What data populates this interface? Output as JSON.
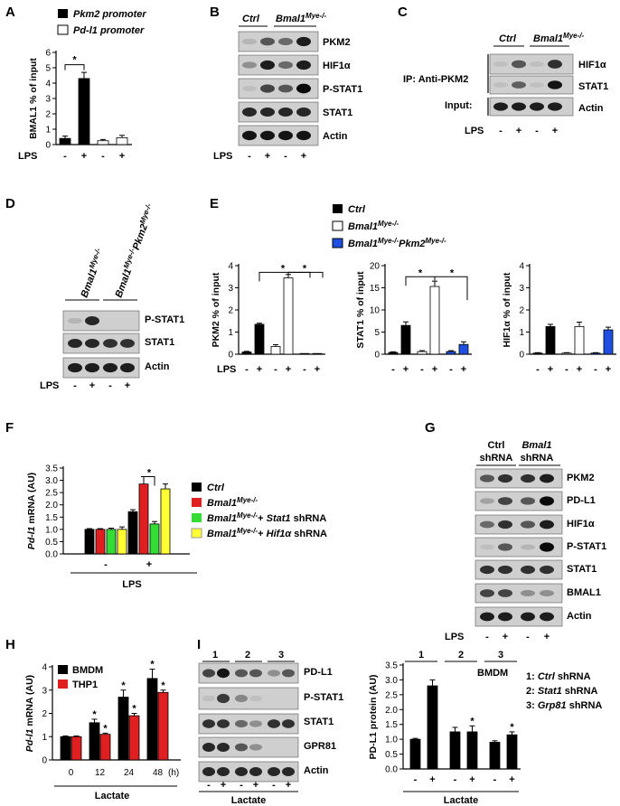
{
  "panels": {
    "A": {
      "letter": "A",
      "legend": [
        "Pkm2 promoter",
        "Pd-l1 promoter"
      ],
      "ylabel": "BMAL1 % of input",
      "x_row_label": "LPS",
      "pm": [
        "-",
        "+",
        "-",
        "+"
      ],
      "sig": "*"
    },
    "B": {
      "letter": "B",
      "groups": [
        "Ctrl",
        "Bmal1Mye-/-"
      ],
      "bands": [
        "PKM2",
        "HIF1α",
        "P-STAT1",
        "STAT1",
        "Actin"
      ],
      "x_row_label": "LPS",
      "pm": [
        "-",
        "+",
        "-",
        "+"
      ]
    },
    "C": {
      "letter": "C",
      "groups": [
        "Ctrl",
        "Bmal1Mye-/-"
      ],
      "ip_label": "IP: Anti-PKM2",
      "input_label": "Input:",
      "bands": [
        "HIF1α",
        "STAT1",
        "Actin"
      ],
      "x_row_label": "LPS",
      "pm": [
        "-",
        "+",
        "-",
        "+"
      ]
    },
    "D": {
      "letter": "D",
      "groups": [
        "Bmal1Mye-/-",
        "Bmal1Mye-/-Pkm2Mye-/-"
      ],
      "bands": [
        "P-STAT1",
        "STAT1",
        "Actin"
      ],
      "x_row_label": "LPS",
      "pm": [
        "-",
        "+",
        "-",
        "+"
      ]
    },
    "E": {
      "letter": "E",
      "legend": [
        "Ctrl",
        "Bmal1Mye-/-",
        "Bmal1Mye-/-Pkm2Mye-/-"
      ],
      "x_row_label": "LPS",
      "pm": [
        "-",
        "+",
        "-",
        "+",
        "-",
        "+"
      ],
      "sig": "*"
    },
    "F": {
      "letter": "F",
      "ylabel": "Pd-l1 mRNA (AU)",
      "legend": [
        "Ctrl",
        "Bmal1Mye-/-",
        "Bmal1Mye-/-+ Stat1 shRNA",
        "Bmal1Mye-/-+ Hif1α shRNA"
      ],
      "x_row_label": "LPS",
      "pm": [
        "-",
        "+"
      ],
      "sig": "*"
    },
    "G": {
      "letter": "G",
      "groups": [
        "Ctrl shRNA",
        "Bmal1 shRNA"
      ],
      "bands": [
        "PKM2",
        "PD-L1",
        "HIF1α",
        "P-STAT1",
        "STAT1",
        "BMAL1",
        "Actin"
      ],
      "x_row_label": "LPS",
      "pm": [
        "-",
        "+",
        "-",
        "+"
      ]
    },
    "H": {
      "letter": "H",
      "ylabel": "Pd-l1 mRNA (AU)",
      "legend": [
        "BMDM",
        "THP1"
      ],
      "xlabel": "Lactate",
      "unit": "(h)",
      "sig": "*"
    },
    "I": {
      "letter": "I",
      "lane_groups": [
        "1",
        "2",
        "3"
      ],
      "bands": [
        "PD-L1",
        "P-STAT1",
        "STAT1",
        "GPR81",
        "Actin"
      ],
      "x_row_label": "Lactate",
      "pm": [
        "-",
        "+",
        "-",
        "+",
        "-",
        "+"
      ],
      "chart_title": "BMDM",
      "ylabel": "PD-L1 protein (AU)",
      "key": [
        "1: Ctrl shRNA",
        "2: Stat1 shRNA",
        "3: Grp81 shRNA"
      ],
      "sig": "*"
    }
  },
  "chart_data": [
    {
      "id": "A",
      "type": "bar",
      "categories": [
        "-",
        "+",
        "-",
        "+"
      ],
      "series": [
        {
          "name": "Pkm2 promoter",
          "values": [
            0.4,
            4.3,
            null,
            null
          ],
          "errors": [
            0.15,
            0.4,
            null,
            null
          ],
          "color": "#000000"
        },
        {
          "name": "Pd-l1 promoter",
          "values": [
            null,
            null,
            0.25,
            0.45
          ],
          "errors": [
            null,
            null,
            0.08,
            0.15
          ],
          "color": "#ffffff"
        }
      ],
      "ylabel": "BMAL1 % of input",
      "ylim": [
        0,
        6
      ],
      "yticks": [
        0,
        1,
        2,
        3,
        4,
        5,
        6
      ]
    },
    {
      "id": "E1",
      "type": "bar",
      "categories": [
        "-",
        "+",
        "-",
        "+",
        "-",
        "+"
      ],
      "values": [
        0.1,
        1.35,
        0.35,
        3.45,
        0.0,
        0.0
      ],
      "errors": [
        0.03,
        0.05,
        0.08,
        0.15,
        0,
        0
      ],
      "colors": [
        "#000000",
        "#000000",
        "#ffffff",
        "#ffffff",
        "#1f4fe0",
        "#1f4fe0"
      ],
      "ylabel": "PKM2 % of input",
      "ylim": [
        0,
        4
      ],
      "yticks": [
        0,
        1,
        2,
        3,
        4
      ]
    },
    {
      "id": "E2",
      "type": "bar",
      "categories": [
        "-",
        "+",
        "-",
        "+",
        "-",
        "+"
      ],
      "values": [
        0.4,
        6.5,
        0.6,
        15.3,
        0.6,
        2.2
      ],
      "errors": [
        0.15,
        0.8,
        0.2,
        1.2,
        0.2,
        0.6
      ],
      "colors": [
        "#000000",
        "#000000",
        "#ffffff",
        "#ffffff",
        "#1f4fe0",
        "#1f4fe0"
      ],
      "ylabel": "STAT1 % of input",
      "ylim": [
        0,
        20
      ],
      "yticks": [
        0,
        5,
        10,
        15,
        20
      ]
    },
    {
      "id": "E3",
      "type": "bar",
      "categories": [
        "-",
        "+",
        "-",
        "+",
        "-",
        "+"
      ],
      "values": [
        0.05,
        1.25,
        0.05,
        1.25,
        0.05,
        1.1
      ],
      "errors": [
        0.02,
        0.1,
        0.02,
        0.2,
        0.02,
        0.12
      ],
      "colors": [
        "#000000",
        "#000000",
        "#ffffff",
        "#ffffff",
        "#1f4fe0",
        "#1f4fe0"
      ],
      "ylabel": "HIF1α % of input",
      "ylim": [
        0,
        4
      ],
      "yticks": [
        0,
        1,
        2,
        3,
        4
      ]
    },
    {
      "id": "F",
      "type": "bar",
      "categories": [
        "-",
        "+"
      ],
      "series": [
        {
          "name": "Ctrl",
          "values": [
            1.0,
            1.72
          ],
          "errors": [
            0.03,
            0.08
          ],
          "color": "#000000"
        },
        {
          "name": "Bmal1Mye-/-",
          "values": [
            1.0,
            2.85
          ],
          "errors": [
            0.03,
            0.3
          ],
          "color": "#e02020"
        },
        {
          "name": "Bmal1Mye-/-+ Stat1 shRNA",
          "values": [
            1.0,
            1.22
          ],
          "errors": [
            0.05,
            0.1
          ],
          "color": "#33dd33"
        },
        {
          "name": "Bmal1Mye-/-+ Hif1α shRNA",
          "values": [
            1.0,
            2.65
          ],
          "errors": [
            0.1,
            0.2
          ],
          "color": "#ffff33"
        }
      ],
      "ylabel": "Pd-l1 mRNA (AU)",
      "ylim": [
        0,
        3.5
      ],
      "yticks": [
        0,
        0.5,
        1.0,
        1.5,
        2.0,
        2.5,
        3.0,
        3.5
      ]
    },
    {
      "id": "H",
      "type": "bar",
      "categories": [
        "0",
        "12",
        "24",
        "48"
      ],
      "series": [
        {
          "name": "BMDM",
          "values": [
            1.0,
            1.6,
            2.7,
            3.5
          ],
          "errors": [
            0.03,
            0.15,
            0.3,
            0.4
          ],
          "color": "#000000"
        },
        {
          "name": "THP1",
          "values": [
            1.0,
            1.1,
            1.9,
            2.9
          ],
          "errors": [
            0.03,
            0.05,
            0.1,
            0.1
          ],
          "color": "#e02020"
        }
      ],
      "xlabel": "Lactate",
      "ylabel": "Pd-l1 mRNA (AU)",
      "ylim": [
        0,
        4
      ],
      "yticks": [
        0,
        1,
        2,
        3,
        4
      ]
    },
    {
      "id": "I",
      "type": "bar",
      "categories": [
        "-",
        "+",
        "-",
        "+",
        "-",
        "+"
      ],
      "values": [
        1.0,
        2.8,
        1.25,
        1.25,
        0.9,
        1.15
      ],
      "errors": [
        0.03,
        0.2,
        0.15,
        0.2,
        0.05,
        0.1
      ],
      "colors": [
        "#000000",
        "#000000",
        "#000000",
        "#000000",
        "#000000",
        "#000000"
      ],
      "title": "BMDM",
      "ylabel": "PD-L1 protein (AU)",
      "xlabel": "Lactate",
      "ylim": [
        0,
        3.5
      ],
      "yticks": [
        0,
        0.5,
        1.0,
        1.5,
        2.0,
        2.5,
        3.0,
        3.5
      ]
    }
  ]
}
